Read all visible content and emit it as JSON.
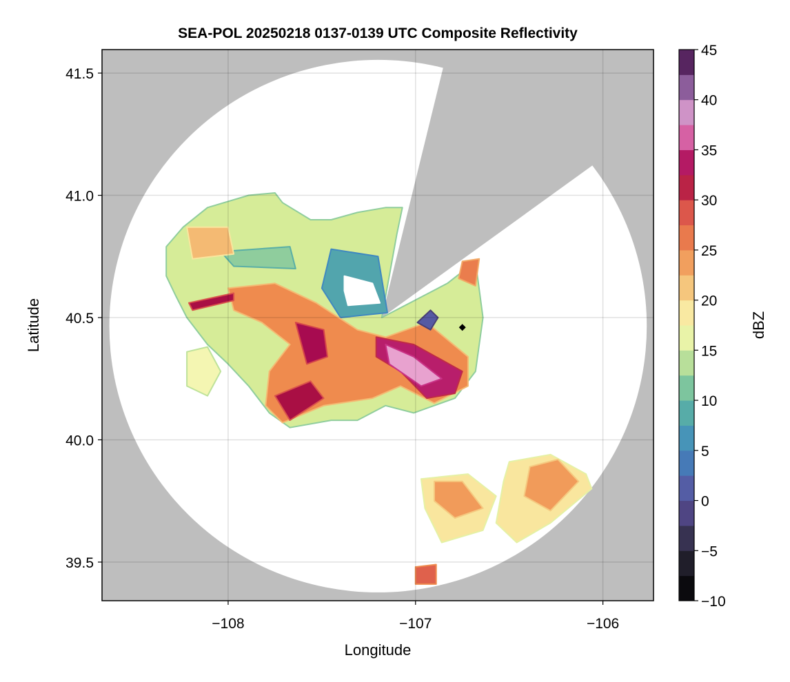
{
  "chart_data": {
    "type": "heatmap",
    "title": "SEA-POL 20250218 0137-0139 UTC Composite Reflectivity",
    "xlabel": "Longitude",
    "ylabel": "Latitude",
    "xlim": [
      -108.673,
      -105.73
    ],
    "ylim": [
      39.342,
      41.596
    ],
    "xticks": [
      -108,
      -107,
      -106
    ],
    "xtick_labels": [
      "−108",
      "−107",
      "−106"
    ],
    "yticks": [
      39.5,
      40.0,
      40.5,
      41.0,
      41.5
    ],
    "ytick_labels": [
      "39.5",
      "40.0",
      "40.5",
      "41.0",
      "41.5"
    ],
    "grid": true,
    "colorbar": {
      "label": "dBZ",
      "range": [
        -10,
        45
      ],
      "ticks": [
        -10,
        -5,
        0,
        5,
        10,
        15,
        20,
        25,
        30,
        35,
        40,
        45
      ],
      "tick_labels": [
        "−10",
        "−5",
        "0",
        "5",
        "10",
        "15",
        "20",
        "25",
        "30",
        "35",
        "40",
        "45"
      ],
      "bin_width": 2.5,
      "colormap_stops": [
        [
          -10,
          "#000000"
        ],
        [
          -5,
          "#2b2838"
        ],
        [
          0,
          "#5b4f9c"
        ],
        [
          5,
          "#3f88c0"
        ],
        [
          10,
          "#5fb8a0"
        ],
        [
          15,
          "#d6ec98"
        ],
        [
          17.5,
          "#fbf9b8"
        ],
        [
          20,
          "#f7d98c"
        ],
        [
          25,
          "#ef8b4e"
        ],
        [
          30,
          "#d5454a"
        ],
        [
          32.5,
          "#9e0142"
        ],
        [
          35,
          "#c93286"
        ],
        [
          38,
          "#e8a2cf"
        ],
        [
          40,
          "#a679b9"
        ],
        [
          45,
          "#3d0942"
        ]
      ]
    },
    "radar_coverage": {
      "center": [
        -107.2,
        40.465
      ],
      "radius_deg": [
        1.434,
        1.089
      ],
      "blocked_sector_apex": [
        -107.18,
        40.5
      ],
      "blocked_sector_edges": [
        [
          -106.85,
          41.53
        ],
        [
          -106.06,
          41.12
        ]
      ]
    },
    "echo_regions": [
      {
        "dbz": 15,
        "poly": [
          [
            -108.24,
            40.87
          ],
          [
            -108.11,
            40.95
          ],
          [
            -107.89,
            41.0
          ],
          [
            -107.75,
            41.01
          ],
          [
            -107.71,
            40.97
          ],
          [
            -107.56,
            40.9
          ],
          [
            -107.45,
            40.9
          ],
          [
            -107.31,
            40.93
          ],
          [
            -107.16,
            40.95
          ],
          [
            -107.07,
            40.95
          ],
          [
            -107.1,
            40.84
          ],
          [
            -107.18,
            40.5
          ],
          [
            -106.83,
            40.64
          ],
          [
            -106.68,
            40.73
          ],
          [
            -106.64,
            40.5
          ],
          [
            -106.68,
            40.28
          ],
          [
            -106.79,
            40.17
          ],
          [
            -107.01,
            40.11
          ],
          [
            -107.16,
            40.14
          ],
          [
            -107.31,
            40.08
          ],
          [
            -107.45,
            40.08
          ],
          [
            -107.67,
            40.05
          ],
          [
            -107.78,
            40.11
          ],
          [
            -107.89,
            40.22
          ],
          [
            -108.0,
            40.31
          ],
          [
            -108.11,
            40.39
          ],
          [
            -108.22,
            40.5
          ],
          [
            -108.28,
            40.59
          ],
          [
            -108.33,
            40.67
          ],
          [
            -108.33,
            40.79
          ]
        ]
      },
      {
        "dbz": 12,
        "poly": [
          [
            -108.04,
            40.77
          ],
          [
            -107.67,
            40.79
          ],
          [
            -107.64,
            40.7
          ],
          [
            -107.97,
            40.71
          ]
        ]
      },
      {
        "dbz": 8,
        "poly": [
          [
            -107.45,
            40.78
          ],
          [
            -107.2,
            40.75
          ],
          [
            -107.15,
            40.52
          ],
          [
            -107.4,
            40.5
          ],
          [
            -107.5,
            40.62
          ]
        ]
      },
      {
        "dbz": -99,
        "poly": [
          [
            -107.38,
            40.67
          ],
          [
            -107.23,
            40.64
          ],
          [
            -107.19,
            40.56
          ],
          [
            -107.36,
            40.55
          ],
          [
            -107.38,
            40.61
          ]
        ]
      },
      {
        "dbz": 22,
        "poly": [
          [
            -108.22,
            40.87
          ],
          [
            -108.0,
            40.87
          ],
          [
            -107.97,
            40.76
          ],
          [
            -108.19,
            40.74
          ]
        ]
      },
      {
        "dbz": 25,
        "poly": [
          [
            -108.0,
            40.62
          ],
          [
            -107.75,
            40.64
          ],
          [
            -107.53,
            40.56
          ],
          [
            -107.31,
            40.45
          ],
          [
            -107.16,
            40.42
          ],
          [
            -106.94,
            40.48
          ],
          [
            -106.72,
            40.34
          ],
          [
            -106.72,
            40.22
          ],
          [
            -106.9,
            40.15
          ],
          [
            -107.08,
            40.22
          ],
          [
            -107.23,
            40.17
          ],
          [
            -107.49,
            40.14
          ],
          [
            -107.71,
            40.07
          ],
          [
            -107.8,
            40.14
          ],
          [
            -107.78,
            40.28
          ],
          [
            -107.67,
            40.39
          ],
          [
            -107.82,
            40.48
          ],
          [
            -107.97,
            40.53
          ]
        ]
      },
      {
        "dbz": 32,
        "poly": [
          [
            -108.21,
            40.56
          ],
          [
            -107.97,
            40.6
          ],
          [
            -107.97,
            40.57
          ],
          [
            -108.19,
            40.53
          ]
        ]
      },
      {
        "dbz": 33,
        "poly": [
          [
            -107.64,
            40.48
          ],
          [
            -107.49,
            40.45
          ],
          [
            -107.47,
            40.34
          ],
          [
            -107.58,
            40.31
          ]
        ]
      },
      {
        "dbz": 32,
        "poly": [
          [
            -107.75,
            40.18
          ],
          [
            -107.56,
            40.24
          ],
          [
            -107.49,
            40.17
          ],
          [
            -107.67,
            40.08
          ]
        ]
      },
      {
        "dbz": 34,
        "poly": [
          [
            -107.21,
            40.42
          ],
          [
            -107.01,
            40.39
          ],
          [
            -106.75,
            40.28
          ],
          [
            -106.79,
            40.19
          ],
          [
            -106.94,
            40.17
          ],
          [
            -107.08,
            40.28
          ],
          [
            -107.21,
            40.34
          ]
        ]
      },
      {
        "dbz": 38,
        "poly": [
          [
            -107.16,
            40.39
          ],
          [
            -107.01,
            40.34
          ],
          [
            -106.86,
            40.25
          ],
          [
            -106.97,
            40.22
          ],
          [
            -107.14,
            40.31
          ]
        ]
      },
      {
        "dbz": 1,
        "poly": [
          [
            -106.99,
            40.48
          ],
          [
            -106.92,
            40.53
          ],
          [
            -106.88,
            40.5
          ],
          [
            -106.92,
            40.45
          ]
        ]
      },
      {
        "dbz": 26,
        "poly": [
          [
            -106.75,
            40.73
          ],
          [
            -106.66,
            40.74
          ],
          [
            -106.68,
            40.63
          ],
          [
            -106.77,
            40.66
          ]
        ]
      },
      {
        "dbz": 17,
        "poly": [
          [
            -108.22,
            40.36
          ],
          [
            -108.11,
            40.38
          ],
          [
            -108.04,
            40.28
          ],
          [
            -108.11,
            40.18
          ],
          [
            -108.22,
            40.22
          ]
        ]
      },
      {
        "dbz": 19,
        "poly": [
          [
            -106.97,
            39.84
          ],
          [
            -106.72,
            39.86
          ],
          [
            -106.57,
            39.77
          ],
          [
            -106.64,
            39.63
          ],
          [
            -106.86,
            39.58
          ],
          [
            -106.95,
            39.72
          ]
        ]
      },
      {
        "dbz": 24,
        "poly": [
          [
            -106.9,
            39.83
          ],
          [
            -106.75,
            39.83
          ],
          [
            -106.64,
            39.72
          ],
          [
            -106.79,
            39.68
          ],
          [
            -106.9,
            39.75
          ]
        ]
      },
      {
        "dbz": 19,
        "poly": [
          [
            -106.5,
            39.91
          ],
          [
            -106.28,
            39.94
          ],
          [
            -106.09,
            39.86
          ],
          [
            -106.06,
            39.8
          ],
          [
            -106.28,
            39.66
          ],
          [
            -106.46,
            39.58
          ],
          [
            -106.57,
            39.66
          ],
          [
            -106.53,
            39.83
          ]
        ]
      },
      {
        "dbz": 24,
        "poly": [
          [
            -106.39,
            39.89
          ],
          [
            -106.24,
            39.92
          ],
          [
            -106.13,
            39.83
          ],
          [
            -106.28,
            39.71
          ],
          [
            -106.42,
            39.77
          ]
        ]
      },
      {
        "dbz": 28,
        "poly": [
          [
            -107.0,
            39.48
          ],
          [
            -106.89,
            39.49
          ],
          [
            -106.89,
            39.41
          ],
          [
            -107.0,
            39.41
          ]
        ]
      }
    ],
    "marker": {
      "lon": -106.75,
      "lat": 40.46
    }
  }
}
